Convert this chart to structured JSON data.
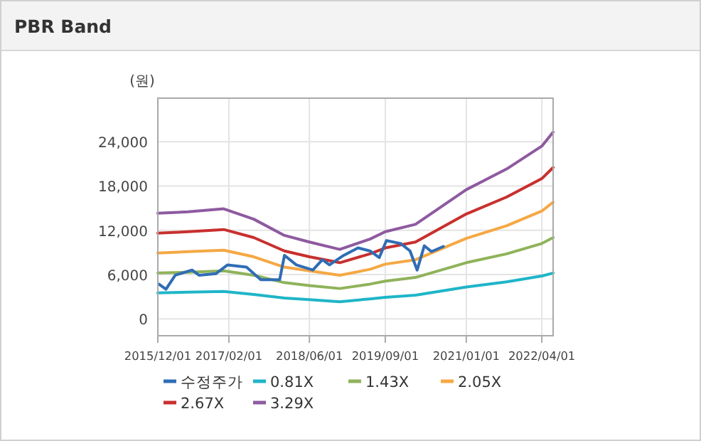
{
  "chart_data": {
    "type": "line",
    "title": "PBR Band",
    "ylabel": "(원)",
    "grid": true,
    "legend": "bottom",
    "line_style": "solid",
    "xlim": [
      "2015-12-01",
      "2022-06-08"
    ],
    "ylim": [
      -2300,
      29900
    ],
    "xticks": [
      {
        "value": "2015-12-01",
        "label": "2015/12/01"
      },
      {
        "value": "2017-02-01",
        "label": "2017/02/01"
      },
      {
        "value": "2018-06-01",
        "label": "2018/06/01"
      },
      {
        "value": "2019-09-01",
        "label": "2019/09/01"
      },
      {
        "value": "2021-01-01",
        "label": "2021/01/01"
      },
      {
        "value": "2022-04-01",
        "label": "2022/04/01"
      }
    ],
    "yticks": [
      0,
      {
        "value": 6000,
        "label": "6,000"
      },
      {
        "value": 12000,
        "label": "12,000"
      },
      {
        "value": 18000,
        "label": "18,000"
      },
      {
        "value": 24000,
        "label": "24,000"
      }
    ],
    "x": [
      "2015-12-01",
      "2016-06-01",
      "2017-01-01",
      "2017-07-01",
      "2018-01-01",
      "2018-06-01",
      "2018-12-01",
      "2019-06-01",
      "2019-09-01",
      "2020-03-01",
      "2021-01-01",
      "2021-09-01",
      "2022-04-01",
      "2022-06-08"
    ],
    "series": [
      {
        "name": "수정주가",
        "color": "#2f6db5",
        "x": [
          "2015-12-07",
          "2016-01-19",
          "2016-03-15",
          "2016-06-24",
          "2016-08-05",
          "2016-11-14",
          "2017-01-24",
          "2017-05-18",
          "2017-08-12",
          "2017-12-04",
          "2018-01-02",
          "2018-03-14",
          "2018-06-22",
          "2018-08-18",
          "2018-09-30",
          "2018-12-25",
          "2019-03-21",
          "2019-05-31",
          "2019-07-27",
          "2019-09-08",
          "2019-12-03",
          "2020-01-28",
          "2020-03-11",
          "2020-04-23",
          "2020-06-05",
          "2020-08-16"
        ],
        "values": [
          4700,
          4000,
          5900,
          6600,
          5900,
          6100,
          7300,
          7000,
          5300,
          5300,
          8600,
          7300,
          6600,
          8000,
          7300,
          8600,
          9600,
          9200,
          8300,
          10600,
          10200,
          9200,
          6600,
          9900,
          9100,
          9800
        ]
      },
      {
        "name": "0.81X",
        "color": "#1fb5c8",
        "values": [
          3500,
          3600,
          3700,
          3300,
          2800,
          2600,
          2300,
          2700,
          2900,
          3200,
          4300,
          5000,
          5800,
          6200
        ]
      },
      {
        "name": "1.43X",
        "color": "#8fb35a",
        "values": [
          6200,
          6300,
          6500,
          5900,
          4900,
          4500,
          4100,
          4700,
          5100,
          5600,
          7600,
          8800,
          10200,
          11000
        ]
      },
      {
        "name": "2.05X",
        "color": "#f5a843",
        "values": [
          8900,
          9100,
          9300,
          8400,
          7000,
          6500,
          5900,
          6700,
          7400,
          8000,
          10900,
          12600,
          14600,
          15800
        ]
      },
      {
        "name": "2.67X",
        "color": "#c8302e",
        "values": [
          11600,
          11800,
          12100,
          11000,
          9200,
          8400,
          7600,
          8800,
          9600,
          10400,
          14200,
          16500,
          19000,
          20500
        ]
      },
      {
        "name": "3.29X",
        "color": "#8e5aa0",
        "values": [
          14300,
          14500,
          14900,
          13500,
          11300,
          10400,
          9400,
          10800,
          11800,
          12800,
          17500,
          20300,
          23400,
          25300
        ]
      }
    ]
  }
}
